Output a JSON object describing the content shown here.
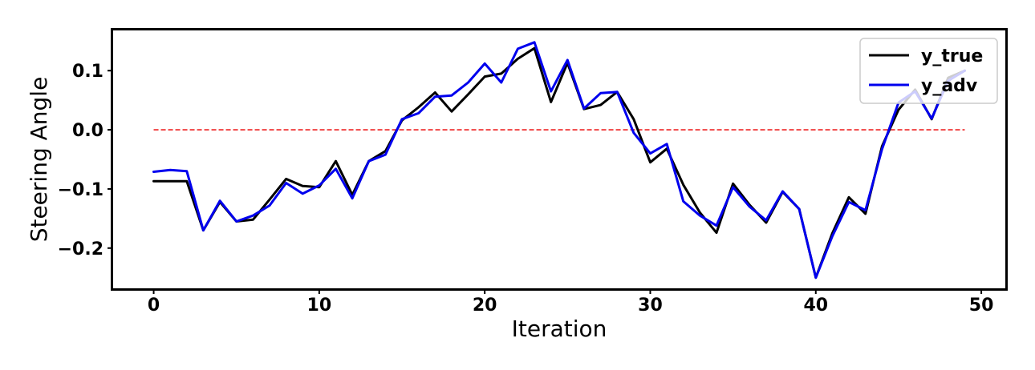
{
  "chart_data": {
    "type": "line",
    "title": "",
    "xlabel": "Iteration",
    "ylabel": "Steering Angle",
    "xlim": [
      -2.45,
      51.45
    ],
    "ylim": [
      -0.268,
      0.168
    ],
    "xticks": [
      0,
      10,
      20,
      30,
      40,
      50
    ],
    "xtick_labels": [
      "0",
      "10",
      "20",
      "30",
      "40",
      "50"
    ],
    "yticks": [
      -0.2,
      -0.1,
      0.0,
      0.1
    ],
    "ytick_labels": [
      "−0.2",
      "−0.1",
      "0.0",
      "0.1"
    ],
    "grid": false,
    "legend_position": "top-right",
    "x": [
      0,
      1,
      2,
      3,
      4,
      5,
      6,
      7,
      8,
      9,
      10,
      11,
      12,
      13,
      14,
      15,
      16,
      17,
      18,
      19,
      20,
      21,
      22,
      23,
      24,
      25,
      26,
      27,
      28,
      29,
      30,
      31,
      32,
      33,
      34,
      35,
      36,
      37,
      38,
      39,
      40,
      41,
      42,
      43,
      44,
      45,
      46,
      47,
      48,
      49
    ],
    "series": [
      {
        "name": "y_true",
        "color": "#000000",
        "values": [
          -0.087,
          -0.087,
          -0.087,
          -0.17,
          -0.122,
          -0.155,
          -0.152,
          -0.118,
          -0.083,
          -0.095,
          -0.097,
          -0.053,
          -0.11,
          -0.053,
          -0.036,
          0.016,
          0.038,
          0.063,
          0.031,
          0.06,
          0.09,
          0.095,
          0.12,
          0.138,
          0.047,
          0.113,
          0.035,
          0.042,
          0.064,
          0.018,
          -0.055,
          -0.032,
          -0.093,
          -0.14,
          -0.174,
          -0.091,
          -0.127,
          -0.157,
          -0.105,
          -0.134,
          -0.25,
          -0.175,
          -0.114,
          -0.142,
          -0.028,
          0.034,
          0.068,
          0.018,
          0.088,
          0.1
        ]
      },
      {
        "name": "y_adv",
        "color": "#0000ee",
        "values": [
          -0.071,
          -0.068,
          -0.07,
          -0.17,
          -0.12,
          -0.155,
          -0.145,
          -0.128,
          -0.09,
          -0.108,
          -0.094,
          -0.066,
          -0.116,
          -0.053,
          -0.042,
          0.018,
          0.028,
          0.056,
          0.058,
          0.08,
          0.112,
          0.08,
          0.137,
          0.148,
          0.065,
          0.118,
          0.036,
          0.062,
          0.064,
          -0.005,
          -0.04,
          -0.024,
          -0.121,
          -0.145,
          -0.162,
          -0.097,
          -0.13,
          -0.153,
          -0.104,
          -0.134,
          -0.25,
          -0.18,
          -0.122,
          -0.136,
          -0.033,
          0.046,
          0.065,
          0.019,
          0.083,
          0.1
        ]
      }
    ],
    "reference_line": {
      "y": 0.0,
      "color": "#ee2222",
      "style": "dashed"
    }
  }
}
